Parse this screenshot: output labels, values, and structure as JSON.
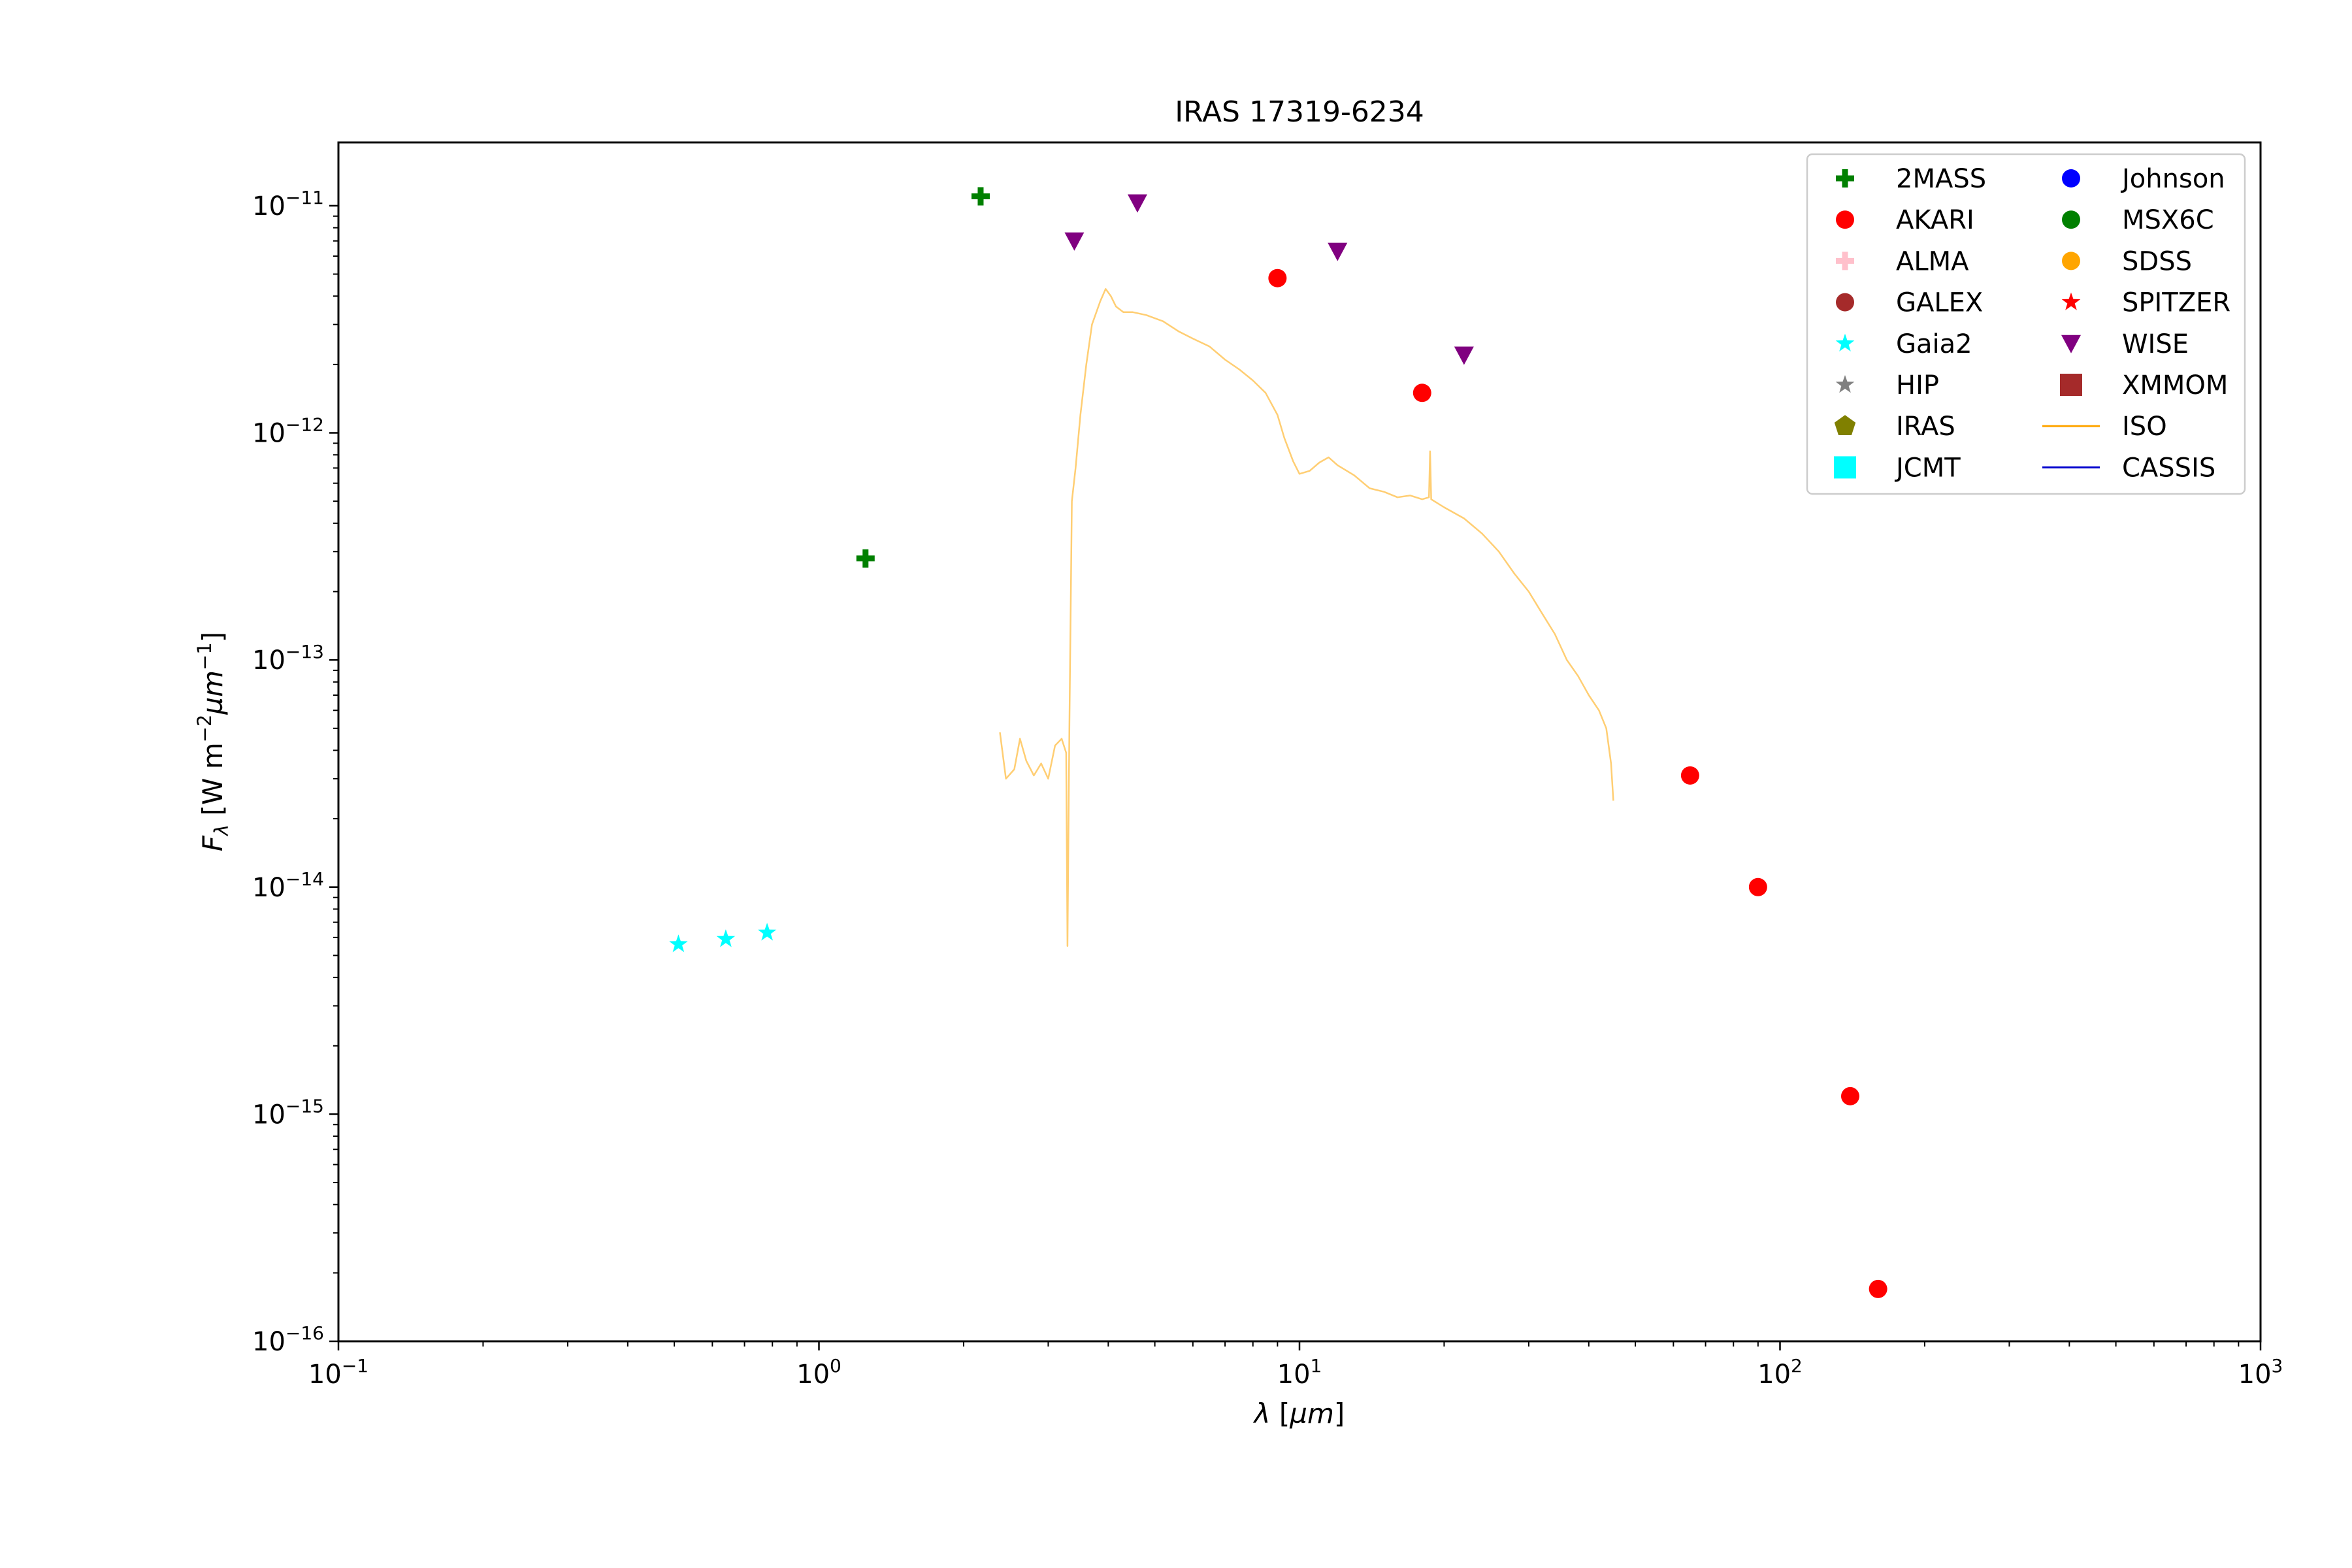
{
  "chart_data": {
    "type": "scatter",
    "title": "IRAS 17319-6234",
    "xlabel": "λ [µm]",
    "ylabel": "F_λ [W m^-2 µm^-1]",
    "xscale": "log",
    "yscale": "log",
    "xlim": [
      0.1,
      1000
    ],
    "ylim": [
      1e-16,
      1.9e-11
    ],
    "grid": false,
    "legend_position": "top-right",
    "x_ticks": [
      {
        "value": 0.1,
        "base": "10",
        "exp": "−1"
      },
      {
        "value": 1,
        "base": "10",
        "exp": "0"
      },
      {
        "value": 10,
        "base": "10",
        "exp": "1"
      },
      {
        "value": 100,
        "base": "10",
        "exp": "2"
      },
      {
        "value": 1000,
        "base": "10",
        "exp": "3"
      }
    ],
    "y_ticks": [
      {
        "value": 1e-11,
        "base": "10",
        "exp": "−11"
      },
      {
        "value": 1e-12,
        "base": "10",
        "exp": "−12"
      },
      {
        "value": 1e-13,
        "base": "10",
        "exp": "−13"
      },
      {
        "value": 1e-14,
        "base": "10",
        "exp": "−14"
      },
      {
        "value": 1e-15,
        "base": "10",
        "exp": "−15"
      },
      {
        "value": 1e-16,
        "base": "10",
        "exp": "−16"
      }
    ],
    "legend": [
      {
        "name": "2MASS",
        "marker": "plus",
        "color": "#008000"
      },
      {
        "name": "AKARI",
        "marker": "circle",
        "color": "#ff0000"
      },
      {
        "name": "ALMA",
        "marker": "plus",
        "color": "#ffc0cb"
      },
      {
        "name": "GALEX",
        "marker": "circle",
        "color": "#a52a2a"
      },
      {
        "name": "Gaia2",
        "marker": "star",
        "color": "#00ffff"
      },
      {
        "name": "HIP",
        "marker": "star",
        "color": "#808080"
      },
      {
        "name": "IRAS",
        "marker": "pentagon",
        "color": "#808000"
      },
      {
        "name": "JCMT",
        "marker": "square",
        "color": "#00ffff"
      },
      {
        "name": "Johnson",
        "marker": "circle",
        "color": "#0000ff"
      },
      {
        "name": "MSX6C",
        "marker": "circle",
        "color": "#008000"
      },
      {
        "name": "SDSS",
        "marker": "circle",
        "color": "#ffa500"
      },
      {
        "name": "SPITZER",
        "marker": "star",
        "color": "#ff0000"
      },
      {
        "name": "WISE",
        "marker": "triangle-down",
        "color": "#800080"
      },
      {
        "name": "XMMOM",
        "marker": "square",
        "color": "#a52a2a"
      },
      {
        "name": "ISO",
        "marker": "line",
        "color": "#ffa500"
      },
      {
        "name": "CASSIS",
        "marker": "line",
        "color": "#0000cd"
      }
    ],
    "series": [
      {
        "name": "2MASS",
        "marker": "plus",
        "color": "#008000",
        "points": [
          [
            1.25,
            2.8e-13
          ],
          [
            2.17,
            1.1e-11
          ]
        ]
      },
      {
        "name": "AKARI",
        "marker": "circle",
        "color": "#ff0000",
        "points": [
          [
            9,
            4.8e-12
          ],
          [
            18,
            1.5e-12
          ],
          [
            65,
            3.1e-14
          ],
          [
            90,
            1e-14
          ],
          [
            140,
            1.2e-15
          ],
          [
            160,
            1.7e-16
          ]
        ]
      },
      {
        "name": "Gaia2",
        "marker": "star",
        "color": "#00ffff",
        "points": [
          [
            0.51,
            5.6e-15
          ],
          [
            0.64,
            5.9e-15
          ],
          [
            0.78,
            6.3e-15
          ]
        ]
      },
      {
        "name": "WISE",
        "marker": "triangle-down",
        "color": "#800080",
        "points": [
          [
            3.4,
            7e-12
          ],
          [
            4.6,
            1.03e-11
          ],
          [
            12,
            6.3e-12
          ],
          [
            22,
            2.2e-12
          ]
        ]
      },
      {
        "name": "ISO",
        "marker": "line",
        "color": "#ffa500",
        "alpha": 0.55,
        "points": [
          [
            2.38,
            4.8e-14
          ],
          [
            2.45,
            3e-14
          ],
          [
            2.55,
            3.3e-14
          ],
          [
            2.62,
            4.5e-14
          ],
          [
            2.7,
            3.6e-14
          ],
          [
            2.8,
            3.1e-14
          ],
          [
            2.9,
            3.5e-14
          ],
          [
            3.0,
            3e-14
          ],
          [
            3.1,
            4.2e-14
          ],
          [
            3.2,
            4.5e-14
          ],
          [
            3.27,
            3.9e-14
          ],
          [
            3.29,
            5.5e-15
          ],
          [
            3.32,
            5e-14
          ],
          [
            3.36,
            5e-13
          ],
          [
            3.42,
            7e-13
          ],
          [
            3.5,
            1.2e-12
          ],
          [
            3.6,
            2e-12
          ],
          [
            3.7,
            3e-12
          ],
          [
            3.85,
            3.8e-12
          ],
          [
            3.95,
            4.3e-12
          ],
          [
            4.05,
            4e-12
          ],
          [
            4.15,
            3.6e-12
          ],
          [
            4.3,
            3.4e-12
          ],
          [
            4.5,
            3.4e-12
          ],
          [
            4.8,
            3.3e-12
          ],
          [
            5.2,
            3.1e-12
          ],
          [
            5.6,
            2.8e-12
          ],
          [
            6.0,
            2.6e-12
          ],
          [
            6.5,
            2.4e-12
          ],
          [
            7.0,
            2.1e-12
          ],
          [
            7.5,
            1.9e-12
          ],
          [
            8.0,
            1.7e-12
          ],
          [
            8.5,
            1.5e-12
          ],
          [
            9.0,
            1.2e-12
          ],
          [
            9.3,
            9.5e-13
          ],
          [
            9.7,
            7.5e-13
          ],
          [
            10.0,
            6.6e-13
          ],
          [
            10.5,
            6.8e-13
          ],
          [
            11.0,
            7.4e-13
          ],
          [
            11.5,
            7.8e-13
          ],
          [
            12.0,
            7.2e-13
          ],
          [
            13.0,
            6.5e-13
          ],
          [
            14.0,
            5.7e-13
          ],
          [
            15.0,
            5.5e-13
          ],
          [
            16.0,
            5.2e-13
          ],
          [
            17.0,
            5.3e-13
          ],
          [
            18.0,
            5.1e-13
          ],
          [
            18.6,
            5.2e-13
          ],
          [
            18.7,
            8.3e-13
          ],
          [
            18.8,
            5.1e-13
          ],
          [
            20.0,
            4.7e-13
          ],
          [
            22.0,
            4.2e-13
          ],
          [
            24.0,
            3.6e-13
          ],
          [
            26.0,
            3e-13
          ],
          [
            28.0,
            2.4e-13
          ],
          [
            30.0,
            2e-13
          ],
          [
            32.0,
            1.6e-13
          ],
          [
            34.0,
            1.3e-13
          ],
          [
            36.0,
            1e-13
          ],
          [
            38.0,
            8.5e-14
          ],
          [
            40.0,
            7e-14
          ],
          [
            42.0,
            6e-14
          ],
          [
            43.5,
            5e-14
          ],
          [
            44.5,
            3.5e-14
          ],
          [
            45.0,
            2.4e-14
          ]
        ]
      }
    ]
  }
}
